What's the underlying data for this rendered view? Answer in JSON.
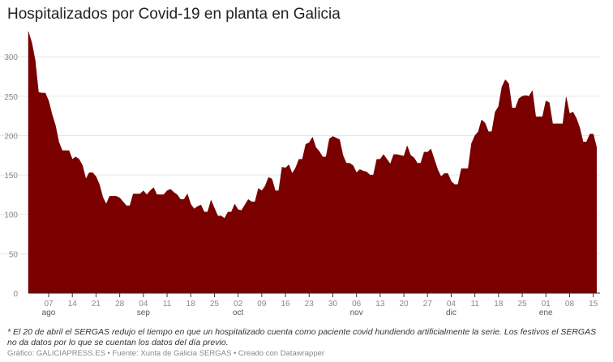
{
  "title": "Hospitalizados por Covid-19 en planta en Galicia",
  "note": "* El 20 de abril el SERGAS redujo el tiempo en que un hospitalizado cuenta como paciente covid hundiendo artificialmente la serie. Los festivos el SERGAS no da datos por lo que se cuentan los datos del día previo.",
  "source": "Gráfico: GALICIAPRESS.ES • Fuente: Xunta de Galicia SERGAS • Creado con Datawrapper",
  "colors": {
    "area": "#7a0000",
    "grid": "#e6e6e6",
    "axis": "#333333"
  },
  "chart_data": {
    "type": "area",
    "title": "Hospitalizados por Covid-19 en planta en Galicia",
    "xlabel": "",
    "ylabel": "",
    "ylim": [
      0,
      330
    ],
    "yticks": [
      0,
      50,
      100,
      150,
      200,
      250,
      300
    ],
    "grid": true,
    "xrange": [
      "2021-08-01",
      "2022-01-17"
    ],
    "xticks": [
      {
        "date": "2021-08-07",
        "label": "07",
        "month": "ago"
      },
      {
        "date": "2021-08-14",
        "label": "14",
        "month": ""
      },
      {
        "date": "2021-08-21",
        "label": "21",
        "month": ""
      },
      {
        "date": "2021-08-28",
        "label": "28",
        "month": ""
      },
      {
        "date": "2021-09-04",
        "label": "04",
        "month": "sep"
      },
      {
        "date": "2021-09-11",
        "label": "11",
        "month": ""
      },
      {
        "date": "2021-09-18",
        "label": "18",
        "month": ""
      },
      {
        "date": "2021-09-25",
        "label": "25",
        "month": ""
      },
      {
        "date": "2021-10-02",
        "label": "02",
        "month": "oct"
      },
      {
        "date": "2021-10-09",
        "label": "09",
        "month": ""
      },
      {
        "date": "2021-10-16",
        "label": "16",
        "month": ""
      },
      {
        "date": "2021-10-23",
        "label": "23",
        "month": ""
      },
      {
        "date": "2021-10-30",
        "label": "30",
        "month": ""
      },
      {
        "date": "2021-11-06",
        "label": "06",
        "month": "nov"
      },
      {
        "date": "2021-11-13",
        "label": "13",
        "month": ""
      },
      {
        "date": "2021-11-20",
        "label": "20",
        "month": ""
      },
      {
        "date": "2021-11-27",
        "label": "27",
        "month": ""
      },
      {
        "date": "2021-12-04",
        "label": "04",
        "month": "dic"
      },
      {
        "date": "2021-12-11",
        "label": "11",
        "month": ""
      },
      {
        "date": "2021-12-18",
        "label": "18",
        "month": ""
      },
      {
        "date": "2021-12-25",
        "label": "25",
        "month": ""
      },
      {
        "date": "2022-01-01",
        "label": "01",
        "month": "ene"
      },
      {
        "date": "2022-01-08",
        "label": "08",
        "month": ""
      },
      {
        "date": "2022-01-15",
        "label": "15",
        "month": ""
      }
    ],
    "series": [
      {
        "points": [
          [
            "2021-08-01",
            332
          ],
          [
            "2021-08-02",
            318
          ],
          [
            "2021-08-03",
            296
          ],
          [
            "2021-08-04",
            255
          ],
          [
            "2021-08-05",
            254
          ],
          [
            "2021-08-06",
            254
          ],
          [
            "2021-08-07",
            244
          ],
          [
            "2021-08-08",
            227
          ],
          [
            "2021-08-09",
            213
          ],
          [
            "2021-08-10",
            192
          ],
          [
            "2021-08-11",
            181
          ],
          [
            "2021-08-12",
            181
          ],
          [
            "2021-08-13",
            181
          ],
          [
            "2021-08-14",
            170
          ],
          [
            "2021-08-15",
            173
          ],
          [
            "2021-08-16",
            170
          ],
          [
            "2021-08-17",
            162
          ],
          [
            "2021-08-18",
            145
          ],
          [
            "2021-08-19",
            153
          ],
          [
            "2021-08-20",
            153
          ],
          [
            "2021-08-21",
            148
          ],
          [
            "2021-08-22",
            138
          ],
          [
            "2021-08-23",
            122
          ],
          [
            "2021-08-24",
            113
          ],
          [
            "2021-08-25",
            123
          ],
          [
            "2021-08-26",
            123
          ],
          [
            "2021-08-27",
            123
          ],
          [
            "2021-08-28",
            121
          ],
          [
            "2021-08-29",
            116
          ],
          [
            "2021-08-30",
            111
          ],
          [
            "2021-08-31",
            111
          ],
          [
            "2021-09-01",
            126
          ],
          [
            "2021-09-02",
            126
          ],
          [
            "2021-09-03",
            126
          ],
          [
            "2021-09-04",
            130
          ],
          [
            "2021-09-05",
            125
          ],
          [
            "2021-09-06",
            130
          ],
          [
            "2021-09-07",
            134
          ],
          [
            "2021-09-08",
            125
          ],
          [
            "2021-09-09",
            125
          ],
          [
            "2021-09-10",
            125
          ],
          [
            "2021-09-11",
            130
          ],
          [
            "2021-09-12",
            132
          ],
          [
            "2021-09-13",
            128
          ],
          [
            "2021-09-14",
            125
          ],
          [
            "2021-09-15",
            119
          ],
          [
            "2021-09-16",
            119
          ],
          [
            "2021-09-17",
            126
          ],
          [
            "2021-09-18",
            113
          ],
          [
            "2021-09-19",
            107
          ],
          [
            "2021-09-20",
            110
          ],
          [
            "2021-09-21",
            112
          ],
          [
            "2021-09-22",
            103
          ],
          [
            "2021-09-23",
            103
          ],
          [
            "2021-09-24",
            118
          ],
          [
            "2021-09-25",
            108
          ],
          [
            "2021-09-26",
            98
          ],
          [
            "2021-09-27",
            98
          ],
          [
            "2021-09-28",
            95
          ],
          [
            "2021-09-29",
            103
          ],
          [
            "2021-09-30",
            103
          ],
          [
            "2021-10-01",
            113
          ],
          [
            "2021-10-02",
            106
          ],
          [
            "2021-10-03",
            105
          ],
          [
            "2021-10-04",
            112
          ],
          [
            "2021-10-05",
            119
          ],
          [
            "2021-10-06",
            116
          ],
          [
            "2021-10-07",
            116
          ],
          [
            "2021-10-08",
            133
          ],
          [
            "2021-10-09",
            130
          ],
          [
            "2021-10-10",
            136
          ],
          [
            "2021-10-11",
            147
          ],
          [
            "2021-10-12",
            145
          ],
          [
            "2021-10-13",
            130
          ],
          [
            "2021-10-14",
            130
          ],
          [
            "2021-10-15",
            160
          ],
          [
            "2021-10-16",
            159
          ],
          [
            "2021-10-17",
            163
          ],
          [
            "2021-10-18",
            152
          ],
          [
            "2021-10-19",
            159
          ],
          [
            "2021-10-20",
            170
          ],
          [
            "2021-10-21",
            170
          ],
          [
            "2021-10-22",
            189
          ],
          [
            "2021-10-23",
            191
          ],
          [
            "2021-10-24",
            198
          ],
          [
            "2021-10-25",
            185
          ],
          [
            "2021-10-26",
            180
          ],
          [
            "2021-10-27",
            173
          ],
          [
            "2021-10-28",
            173
          ],
          [
            "2021-10-29",
            196
          ],
          [
            "2021-10-30",
            199
          ],
          [
            "2021-10-31",
            197
          ],
          [
            "2021-11-01",
            195
          ],
          [
            "2021-11-02",
            175
          ],
          [
            "2021-11-03",
            165
          ],
          [
            "2021-11-04",
            165
          ],
          [
            "2021-11-05",
            162
          ],
          [
            "2021-11-06",
            153
          ],
          [
            "2021-11-07",
            157
          ],
          [
            "2021-11-08",
            155
          ],
          [
            "2021-11-09",
            154
          ],
          [
            "2021-11-10",
            150
          ],
          [
            "2021-11-11",
            150
          ],
          [
            "2021-11-12",
            170
          ],
          [
            "2021-11-13",
            170
          ],
          [
            "2021-11-14",
            176
          ],
          [
            "2021-11-15",
            170
          ],
          [
            "2021-11-16",
            164
          ],
          [
            "2021-11-17",
            176
          ],
          [
            "2021-11-18",
            176
          ],
          [
            "2021-11-19",
            175
          ],
          [
            "2021-11-20",
            174
          ],
          [
            "2021-11-21",
            187
          ],
          [
            "2021-11-22",
            175
          ],
          [
            "2021-11-23",
            172
          ],
          [
            "2021-11-24",
            165
          ],
          [
            "2021-11-25",
            165
          ],
          [
            "2021-11-26",
            179
          ],
          [
            "2021-11-27",
            179
          ],
          [
            "2021-11-28",
            183
          ],
          [
            "2021-11-29",
            170
          ],
          [
            "2021-11-30",
            157
          ],
          [
            "2021-12-01",
            148
          ],
          [
            "2021-12-02",
            152
          ],
          [
            "2021-12-03",
            152
          ],
          [
            "2021-12-04",
            142
          ],
          [
            "2021-12-05",
            138
          ],
          [
            "2021-12-06",
            138
          ],
          [
            "2021-12-07",
            158
          ],
          [
            "2021-12-08",
            158
          ],
          [
            "2021-12-09",
            158
          ],
          [
            "2021-12-10",
            190
          ],
          [
            "2021-12-11",
            200
          ],
          [
            "2021-12-12",
            205
          ],
          [
            "2021-12-13",
            220
          ],
          [
            "2021-12-14",
            216
          ],
          [
            "2021-12-15",
            205
          ],
          [
            "2021-12-16",
            205
          ],
          [
            "2021-12-17",
            230
          ],
          [
            "2021-12-18",
            237
          ],
          [
            "2021-12-19",
            262
          ],
          [
            "2021-12-20",
            271
          ],
          [
            "2021-12-21",
            266
          ],
          [
            "2021-12-22",
            235
          ],
          [
            "2021-12-23",
            235
          ],
          [
            "2021-12-24",
            247
          ],
          [
            "2021-12-25",
            250
          ],
          [
            "2021-12-26",
            251
          ],
          [
            "2021-12-27",
            250
          ],
          [
            "2021-12-28",
            257
          ],
          [
            "2021-12-29",
            224
          ],
          [
            "2021-12-30",
            224
          ],
          [
            "2021-12-31",
            224
          ],
          [
            "2022-01-01",
            244
          ],
          [
            "2022-01-02",
            242
          ],
          [
            "2022-01-03",
            215
          ],
          [
            "2022-01-04",
            215
          ],
          [
            "2022-01-05",
            215
          ],
          [
            "2022-01-06",
            215
          ],
          [
            "2022-01-07",
            249
          ],
          [
            "2022-01-08",
            228
          ],
          [
            "2022-01-09",
            230
          ],
          [
            "2022-01-10",
            222
          ],
          [
            "2022-01-11",
            210
          ],
          [
            "2022-01-12",
            192
          ],
          [
            "2022-01-13",
            192
          ],
          [
            "2022-01-14",
            202
          ],
          [
            "2022-01-15",
            202
          ],
          [
            "2022-01-16",
            185
          ]
        ]
      }
    ]
  }
}
